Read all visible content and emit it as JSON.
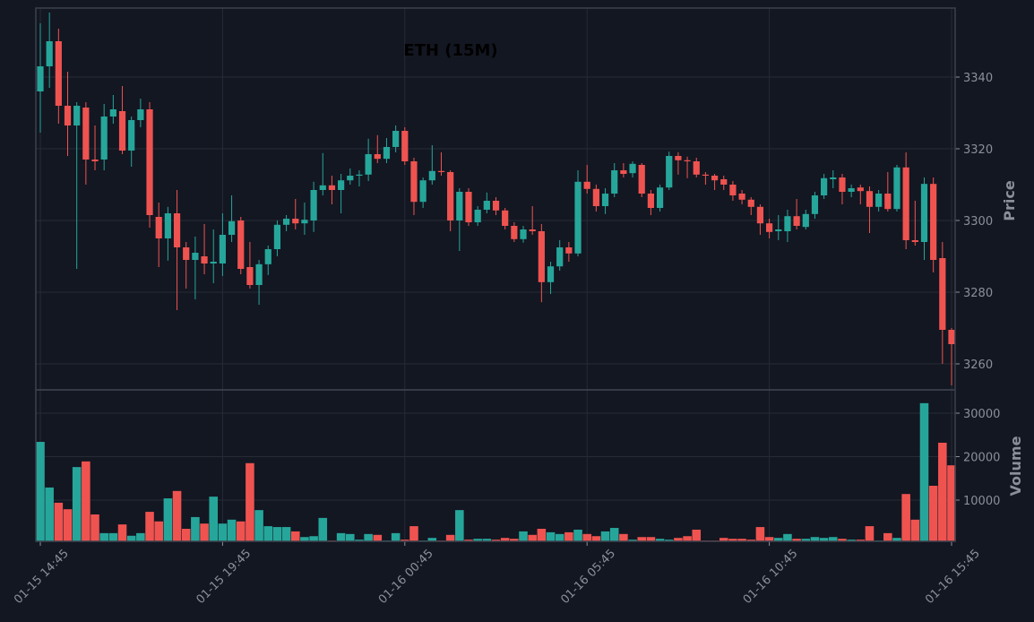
{
  "chart_data": {
    "type": "candlestick",
    "title": "ETH (15M)",
    "x": [
      "01-15 14:45",
      "01-15 15:00",
      "01-15 15:15",
      "01-15 15:30",
      "01-15 15:45",
      "01-15 16:00",
      "01-15 16:15",
      "01-15 16:30",
      "01-15 16:45",
      "01-15 17:00",
      "01-15 17:15",
      "01-15 17:30",
      "01-15 17:45",
      "01-15 18:00",
      "01-15 18:15",
      "01-15 18:30",
      "01-15 18:45",
      "01-15 19:00",
      "01-15 19:15",
      "01-15 19:30",
      "01-15 19:45",
      "01-15 20:00",
      "01-15 20:15",
      "01-15 20:30",
      "01-15 20:45",
      "01-15 21:00",
      "01-15 21:15",
      "01-15 21:30",
      "01-15 21:45",
      "01-15 22:00",
      "01-15 22:15",
      "01-15 22:30",
      "01-15 22:45",
      "01-15 23:00",
      "01-15 23:15",
      "01-15 23:30",
      "01-15 23:45",
      "01-16 00:00",
      "01-16 00:15",
      "01-16 00:30",
      "01-16 00:45",
      "01-16 01:00",
      "01-16 01:15",
      "01-16 01:30",
      "01-16 01:45",
      "01-16 02:00",
      "01-16 02:15",
      "01-16 02:30",
      "01-16 02:45",
      "01-16 03:00",
      "01-16 03:15",
      "01-16 03:30",
      "01-16 03:45",
      "01-16 04:00",
      "01-16 04:15",
      "01-16 04:30",
      "01-16 04:45",
      "01-16 05:00",
      "01-16 05:15",
      "01-16 05:30",
      "01-16 05:45",
      "01-16 06:00",
      "01-16 06:15",
      "01-16 06:30",
      "01-16 06:45",
      "01-16 07:00",
      "01-16 07:15",
      "01-16 07:30",
      "01-16 07:45",
      "01-16 08:00",
      "01-16 08:15",
      "01-16 08:30",
      "01-16 08:45",
      "01-16 09:00",
      "01-16 09:15",
      "01-16 09:30",
      "01-16 09:45",
      "01-16 10:00",
      "01-16 10:15",
      "01-16 10:30",
      "01-16 10:45",
      "01-16 11:00",
      "01-16 11:15",
      "01-16 11:30",
      "01-16 11:45",
      "01-16 12:00",
      "01-16 12:15",
      "01-16 12:30",
      "01-16 12:45",
      "01-16 13:00",
      "01-16 13:15",
      "01-16 13:30",
      "01-16 13:45",
      "01-16 14:00",
      "01-16 14:15",
      "01-16 14:30",
      "01-16 14:45",
      "01-16 15:00",
      "01-16 15:15",
      "01-16 15:30",
      "01-16 15:45"
    ],
    "open": [
      3336,
      3343,
      3350,
      3332,
      3326.5,
      3331.5,
      3317,
      3317,
      3329,
      3330.5,
      3319.5,
      3328,
      3331,
      3301,
      3295,
      3302,
      3292.5,
      3289,
      3290,
      3288,
      3288,
      3296,
      3300,
      3287,
      3282,
      3287.8,
      3292,
      3298.8,
      3300.5,
      3299.2,
      3300,
      3308.5,
      3309.8,
      3308.5,
      3311.2,
      3312.5,
      3312.8,
      3318.5,
      3317.2,
      3320.5,
      3325,
      3316.5,
      3305.2,
      3311.2,
      3313.8,
      3313.5,
      3300,
      3308,
      3299.5,
      3303,
      3305.5,
      3302.8,
      3298.5,
      3294.8,
      3297.5,
      3297,
      3282.8,
      3287.2,
      3292.5,
      3290.8,
      3310.8,
      3308.8,
      3304,
      3307.5,
      3314,
      3313.2,
      3315.5,
      3307.5,
      3303.5,
      3309.2,
      3318,
      3316.8,
      3316.5,
      3312.8,
      3312.5,
      3311.5,
      3310,
      3307.5,
      3305.8,
      3303.8,
      3299.2,
      3297,
      3297,
      3301.2,
      3298.2,
      3301.8,
      3307,
      3311.5,
      3312,
      3308,
      3309.2,
      3308.2,
      3303.8,
      3307.5,
      3303.2,
      3314.8,
      3294.5,
      3294,
      3310.2,
      3289.5,
      3269.5
    ],
    "high": [
      3355,
      3358,
      3353.5,
      3341.5,
      3333,
      3333,
      3326.5,
      3332.5,
      3335,
      3337.5,
      3329,
      3334,
      3333,
      3305,
      3303.8,
      3308.5,
      3294,
      3295.5,
      3299,
      3297.5,
      3302,
      3307,
      3301,
      3294,
      3289,
      3293,
      3300,
      3301.5,
      3306,
      3305,
      3310.8,
      3318.8,
      3312.5,
      3313,
      3314.5,
      3314,
      3322.8,
      3323.8,
      3323,
      3326.5,
      3326,
      3317.5,
      3312,
      3321,
      3319,
      3314,
      3309,
      3309,
      3304,
      3307.8,
      3306.5,
      3303.5,
      3299.5,
      3298.5,
      3304,
      3299,
      3288.5,
      3294.5,
      3294,
      3314,
      3315.5,
      3310,
      3309,
      3316,
      3316,
      3316.5,
      3316,
      3308.5,
      3310,
      3319.2,
      3319,
      3317.8,
      3317.5,
      3313.5,
      3313,
      3312.5,
      3311,
      3308.5,
      3306.5,
      3304.5,
      3300.5,
      3301.5,
      3303,
      3306,
      3303,
      3308,
      3313,
      3314,
      3313,
      3310,
      3310,
      3309.5,
      3308.5,
      3313.5,
      3315.5,
      3319,
      3305.5,
      3312,
      3312,
      3294,
      3270
    ],
    "low": [
      3324.5,
      3337,
      3327,
      3318,
      3286.5,
      3310,
      3314,
      3314,
      3327,
      3318.5,
      3315,
      3326,
      3298,
      3287,
      3288.8,
      3275,
      3281,
      3278,
      3285,
      3282.5,
      3284.5,
      3294,
      3285,
      3281,
      3276.5,
      3284.8,
      3290,
      3297,
      3297.5,
      3296,
      3296.8,
      3307,
      3304.5,
      3302,
      3310,
      3309.5,
      3311,
      3316,
      3316,
      3319,
      3315.5,
      3301.5,
      3303.5,
      3310,
      3312.5,
      3297,
      3291.5,
      3298.5,
      3298.5,
      3302,
      3301.5,
      3297.5,
      3294,
      3293.8,
      3296,
      3277.2,
      3279.5,
      3286,
      3288.5,
      3290,
      3307.5,
      3302.5,
      3301.8,
      3306.5,
      3312,
      3312,
      3306.5,
      3301.5,
      3302.5,
      3308.5,
      3312.8,
      3311.8,
      3312,
      3310,
      3308.5,
      3308.5,
      3305.5,
      3304.5,
      3301.5,
      3296,
      3295,
      3294.5,
      3294,
      3297.5,
      3297.5,
      3300.5,
      3306,
      3309,
      3304.5,
      3306.5,
      3304.5,
      3296.5,
      3302.5,
      3302.5,
      3302.5,
      3292,
      3293,
      3289,
      3285.5,
      3260,
      3254
    ],
    "close": [
      3343,
      3350,
      3332,
      3326.5,
      3332,
      3317,
      3316.5,
      3329,
      3331,
      3319.5,
      3328,
      3331,
      3301.5,
      3295,
      3302,
      3292.5,
      3289,
      3291,
      3288,
      3288.5,
      3296,
      3299.8,
      3286.5,
      3282,
      3287.8,
      3292,
      3298.8,
      3300.5,
      3299.2,
      3300.2,
      3308.5,
      3309.8,
      3308.5,
      3311.2,
      3312.5,
      3312.8,
      3318.5,
      3317.2,
      3320.5,
      3325,
      3316.5,
      3305.2,
      3311.2,
      3313.8,
      3313.5,
      3300,
      3308,
      3299.5,
      3303,
      3305.5,
      3302.8,
      3298.5,
      3294.8,
      3297.5,
      3297,
      3282.8,
      3287.2,
      3292.5,
      3290.8,
      3310.8,
      3308.8,
      3304,
      3307.5,
      3314,
      3313,
      3315.8,
      3307.5,
      3303.5,
      3309.2,
      3318,
      3316.8,
      3316.5,
      3312.8,
      3312.5,
      3311.2,
      3310,
      3307,
      3305.8,
      3303.8,
      3299.2,
      3296.8,
      3297.5,
      3301.2,
      3298.5,
      3301.8,
      3307,
      3311.8,
      3312,
      3308,
      3309,
      3308.2,
      3303.8,
      3307.5,
      3303.2,
      3314.8,
      3294.5,
      3294,
      3310.2,
      3289,
      3269.5,
      3265.5
    ],
    "volume": [
      23400,
      12900,
      9400,
      7900,
      17600,
      18900,
      6700,
      2400,
      2400,
      4400,
      1800,
      2400,
      7300,
      5100,
      10400,
      12100,
      3400,
      6100,
      4600,
      10800,
      4600,
      5500,
      5100,
      18500,
      7700,
      4000,
      3800,
      3800,
      2800,
      1500,
      1700,
      5900,
      700,
      2400,
      2200,
      900,
      2200,
      2000,
      700,
      2400,
      900,
      4000,
      700,
      1300,
      700,
      2000,
      7700,
      900,
      1100,
      1100,
      900,
      1300,
      1100,
      2800,
      2000,
      3400,
      2600,
      2200,
      2600,
      3200,
      2200,
      1700,
      2800,
      3600,
      2200,
      900,
      1500,
      1500,
      1100,
      900,
      1300,
      1700,
      3200,
      700,
      700,
      1300,
      1100,
      1100,
      900,
      3800,
      1500,
      1300,
      2200,
      1100,
      1100,
      1500,
      1300,
      1500,
      1100,
      900,
      900,
      4000,
      700,
      2400,
      1300,
      11400,
      5500,
      32300,
      13300,
      23200,
      18000
    ],
    "up_color": "#26a69a",
    "down_color": "#ef5350",
    "ylabel": "Price",
    "ylim": [
      3252.75,
      3359.25
    ],
    "yticks": [
      3260,
      3280,
      3300,
      3320,
      3340
    ],
    "volume_label": "Volume",
    "volume_ylim": [
      515,
      35360
    ],
    "volume_yticks": [
      10000,
      20000,
      30000
    ],
    "xticks": [
      "01-15 14:45",
      "01-15 19:45",
      "01-16 00:45",
      "01-16 05:45",
      "01-16 10:45",
      "01-16 15:45"
    ],
    "grid": true
  }
}
